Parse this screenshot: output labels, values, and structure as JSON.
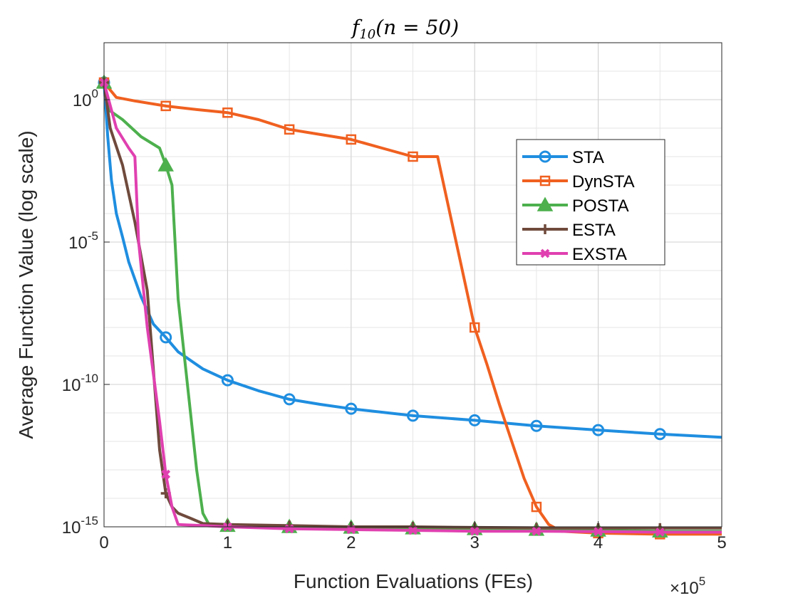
{
  "chart_data": {
    "type": "line",
    "title": "f10(n = 50)",
    "title_func": "f",
    "title_sub": "10",
    "title_rest": "(n = 50)",
    "xlabel": "Function Evaluations (FEs)",
    "ylabel": "Average Function Value (log scale)",
    "x_scale_note": "×10",
    "x_scale_exp": "5",
    "xlim": [
      0,
      500000
    ],
    "ylim": [
      1e-15,
      100
    ],
    "y_scale": "log",
    "grid": true,
    "legend_position": "upper-right-center",
    "x_ticks": [
      {
        "value": 0,
        "label": "0"
      },
      {
        "value": 100000,
        "label": "1"
      },
      {
        "value": 200000,
        "label": "2"
      },
      {
        "value": 300000,
        "label": "3"
      },
      {
        "value": 400000,
        "label": "4"
      },
      {
        "value": 500000,
        "label": "5"
      }
    ],
    "y_ticks": [
      {
        "value": 1,
        "base": "10",
        "exp": "0"
      },
      {
        "value": 1e-05,
        "base": "10",
        "exp": "-5"
      },
      {
        "value": 1e-10,
        "base": "10",
        "exp": "-10"
      },
      {
        "value": 1e-15,
        "base": "10",
        "exp": "-15"
      }
    ],
    "series": [
      {
        "name": "STA",
        "color": "#1f8ee0",
        "marker": "circle",
        "points": [
          [
            0,
            4
          ],
          [
            1000,
            1
          ],
          [
            3000,
            0.05
          ],
          [
            6000,
            0.0015
          ],
          [
            10000,
            0.0001
          ],
          [
            15000,
            1.5e-05
          ],
          [
            20000,
            2e-06
          ],
          [
            30000,
            1.2e-07
          ],
          [
            40000,
            1.3e-08
          ],
          [
            50000,
            4.5e-09
          ],
          [
            60000,
            1.4e-09
          ],
          [
            80000,
            3.5e-10
          ],
          [
            100000,
            1.4e-10
          ],
          [
            125000,
            6e-11
          ],
          [
            150000,
            3e-11
          ],
          [
            175000,
            2e-11
          ],
          [
            200000,
            1.4e-11
          ],
          [
            250000,
            8e-12
          ],
          [
            300000,
            5.5e-12
          ],
          [
            350000,
            3.5e-12
          ],
          [
            400000,
            2.5e-12
          ],
          [
            450000,
            1.8e-12
          ],
          [
            500000,
            1.4e-12
          ]
        ],
        "markers_x": [
          0,
          50000,
          100000,
          150000,
          200000,
          250000,
          300000,
          350000,
          400000,
          450000
        ]
      },
      {
        "name": "DynSTA",
        "color": "#f06020",
        "marker": "square",
        "points": [
          [
            0,
            4
          ],
          [
            10000,
            1.2
          ],
          [
            25000,
            0.9
          ],
          [
            50000,
            0.6
          ],
          [
            75000,
            0.45
          ],
          [
            100000,
            0.35
          ],
          [
            125000,
            0.2
          ],
          [
            150000,
            0.09
          ],
          [
            175000,
            0.06
          ],
          [
            200000,
            0.04
          ],
          [
            225000,
            0.02
          ],
          [
            250000,
            0.01
          ],
          [
            260000,
            0.01
          ],
          [
            270000,
            0.01
          ],
          [
            280000,
            0.0001
          ],
          [
            290000,
            1e-06
          ],
          [
            300000,
            1e-08
          ],
          [
            310000,
            5e-10
          ],
          [
            320000,
            2e-11
          ],
          [
            330000,
            1e-12
          ],
          [
            340000,
            5e-14
          ],
          [
            350000,
            5e-15
          ],
          [
            360000,
            1.2e-15
          ],
          [
            370000,
            7e-16
          ],
          [
            400000,
            6e-16
          ],
          [
            450000,
            5.5e-16
          ],
          [
            500000,
            5.5e-16
          ]
        ],
        "markers_x": [
          0,
          50000,
          100000,
          150000,
          200000,
          250000,
          300000,
          350000,
          400000,
          450000
        ]
      },
      {
        "name": "POSTA",
        "color": "#4db04d",
        "marker": "triangle",
        "points": [
          [
            0,
            4
          ],
          [
            5000,
            0.4
          ],
          [
            15000,
            0.2
          ],
          [
            30000,
            0.05
          ],
          [
            45000,
            0.02
          ],
          [
            50000,
            0.005
          ],
          [
            55000,
            0.001
          ],
          [
            60000,
            1e-07
          ],
          [
            65000,
            1e-09
          ],
          [
            70000,
            1e-11
          ],
          [
            75000,
            1e-13
          ],
          [
            80000,
            3e-15
          ],
          [
            85000,
            1.2e-15
          ],
          [
            100000,
            1.1e-15
          ],
          [
            150000,
            1e-15
          ],
          [
            200000,
            9.5e-16
          ],
          [
            250000,
            9e-16
          ],
          [
            300000,
            8.5e-16
          ],
          [
            350000,
            8e-16
          ],
          [
            400000,
            7.5e-16
          ],
          [
            450000,
            7e-16
          ],
          [
            500000,
            7e-16
          ]
        ],
        "markers_x": [
          0,
          50000,
          100000,
          150000,
          200000,
          250000,
          300000,
          350000,
          400000,
          450000
        ]
      },
      {
        "name": "ESTA",
        "color": "#6f4a3c",
        "marker": "plus",
        "points": [
          [
            0,
            4
          ],
          [
            5000,
            0.1
          ],
          [
            15000,
            0.005
          ],
          [
            25000,
            5e-05
          ],
          [
            35000,
            2e-07
          ],
          [
            45000,
            5e-13
          ],
          [
            50000,
            1.5e-14
          ],
          [
            55000,
            5e-15
          ],
          [
            60000,
            3e-15
          ],
          [
            70000,
            2e-15
          ],
          [
            80000,
            1.3e-15
          ],
          [
            100000,
            1.2e-15
          ],
          [
            150000,
            1.1e-15
          ],
          [
            200000,
            1e-15
          ],
          [
            250000,
            1e-15
          ],
          [
            300000,
            9.5e-16
          ],
          [
            350000,
            9.2e-16
          ],
          [
            400000,
            9e-16
          ],
          [
            450000,
            9e-16
          ],
          [
            500000,
            9e-16
          ]
        ],
        "markers_x": [
          0,
          50000,
          100000,
          150000,
          200000,
          250000,
          300000,
          350000,
          400000,
          450000
        ]
      },
      {
        "name": "EXSTA",
        "color": "#e040b0",
        "marker": "x",
        "points": [
          [
            0,
            4
          ],
          [
            10000,
            0.1
          ],
          [
            20000,
            0.02
          ],
          [
            25000,
            0.01
          ],
          [
            28000,
            1e-05
          ],
          [
            35000,
            1e-08
          ],
          [
            45000,
            5e-12
          ],
          [
            50000,
            7e-14
          ],
          [
            55000,
            5e-15
          ],
          [
            60000,
            1.2e-15
          ],
          [
            80000,
            1.1e-15
          ],
          [
            100000,
            1e-15
          ],
          [
            150000,
            8.5e-16
          ],
          [
            200000,
            8e-16
          ],
          [
            250000,
            7.5e-16
          ],
          [
            300000,
            7e-16
          ],
          [
            350000,
            7e-16
          ],
          [
            400000,
            6.8e-16
          ],
          [
            450000,
            6.5e-16
          ],
          [
            500000,
            6.5e-16
          ]
        ],
        "markers_x": [
          0,
          50000,
          100000,
          150000,
          200000,
          250000,
          300000,
          350000,
          400000,
          450000
        ]
      }
    ]
  }
}
